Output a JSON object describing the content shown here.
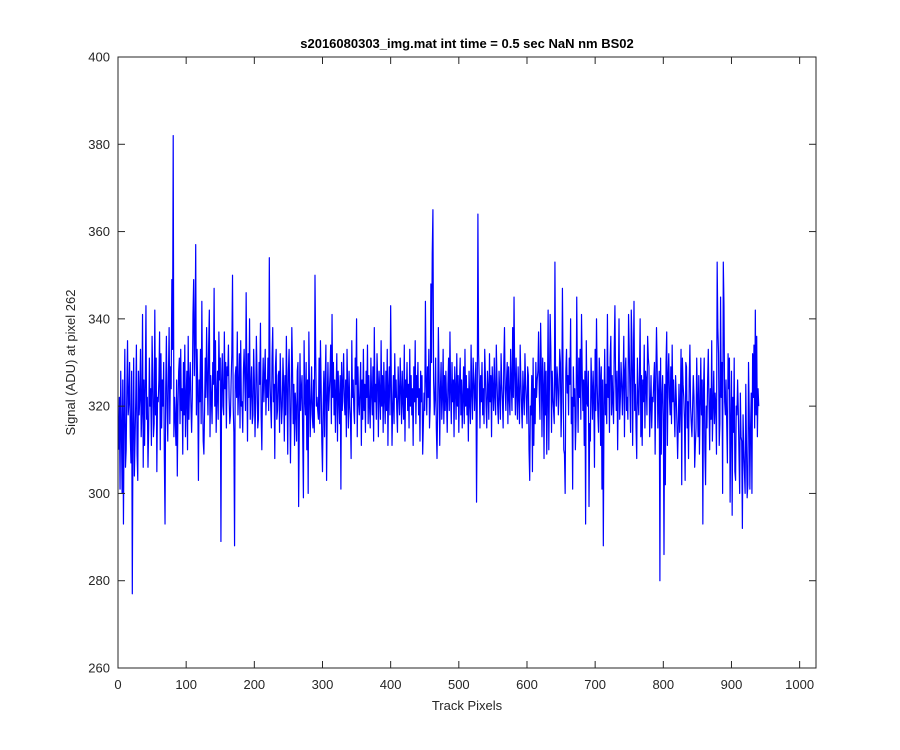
{
  "chart_data": {
    "type": "line",
    "title": "s2016080303_img.mat int time = 0.5 sec  NaN nm BS02",
    "xlabel": "Track Pixels",
    "ylabel": "Signal (ADU) at pixel 262",
    "xlim": [
      0,
      1024
    ],
    "ylim": [
      260,
      400
    ],
    "xticks": [
      0,
      100,
      200,
      300,
      400,
      500,
      600,
      700,
      800,
      900,
      1000
    ],
    "yticks": [
      260,
      280,
      300,
      320,
      340,
      360,
      380,
      400
    ],
    "grid": false,
    "colors": {
      "line": "#0000ff",
      "axes": "#262626"
    },
    "series": [
      {
        "x_start": 1,
        "x_step": 1,
        "values": [
          310,
          322,
          301,
          328,
          315,
          300,
          326,
          293,
          318,
          333,
          306,
          310,
          324,
          335,
          318,
          321,
          330,
          313,
          307,
          328,
          277,
          316,
          331,
          304,
          312,
          321,
          334,
          309,
          303,
          328,
          318,
          322,
          333,
          313,
          319,
          341,
          306,
          326,
          311,
          325,
          343,
          317,
          322,
          306,
          315,
          331,
          320,
          324,
          311,
          336,
          327,
          313,
          316,
          342,
          318,
          331,
          305,
          322,
          321,
          326,
          337,
          310,
          332,
          315,
          326,
          320,
          330,
          308,
          293,
          324,
          336,
          320,
          312,
          327,
          338,
          316,
          329,
          324,
          349,
          333,
          382,
          313,
          322,
          317,
          311,
          326,
          304,
          320,
          328,
          331,
          316,
          333,
          319,
          324,
          309,
          330,
          318,
          334,
          313,
          322,
          328,
          310,
          336,
          317,
          325,
          330,
          320,
          314,
          322,
          341,
          349,
          327,
          336,
          357,
          318,
          333,
          324,
          303,
          326,
          321,
          333,
          316,
          344,
          325,
          312,
          309,
          319,
          331,
          322,
          338,
          326,
          318,
          334,
          342,
          313,
          327,
          322,
          316,
          330,
          325,
          347,
          320,
          335,
          314,
          322,
          328,
          317,
          337,
          326,
          331,
          289,
          326,
          332,
          320,
          318,
          337,
          324,
          330,
          315,
          329,
          327,
          334,
          322,
          316,
          318,
          326,
          332,
          350,
          320,
          314,
          288,
          327,
          329,
          322,
          337,
          318,
          324,
          332,
          315,
          335,
          320,
          321,
          314,
          328,
          333,
          326,
          319,
          346,
          327,
          312,
          332,
          322,
          340,
          317,
          324,
          329,
          316,
          318,
          333,
          326,
          313,
          321,
          336,
          327,
          315,
          317,
          330,
          325,
          339,
          318,
          310,
          324,
          331,
          321,
          327,
          333,
          318,
          326,
          322,
          331,
          319,
          354,
          326,
          320,
          315,
          331,
          338,
          321,
          325,
          308,
          329,
          333,
          317,
          319,
          327,
          328,
          314,
          332,
          323,
          316,
          320,
          331,
          325,
          312,
          327,
          318,
          336,
          324,
          309,
          328,
          333,
          322,
          307,
          320,
          338,
          329,
          316,
          325,
          311,
          323,
          319,
          312,
          328,
          330,
          297,
          316,
          332,
          319,
          324,
          327,
          313,
          299,
          335,
          322,
          318,
          330,
          310,
          326,
          300,
          337,
          324,
          313,
          321,
          329,
          318,
          315,
          326,
          314,
          350,
          332,
          320,
          322,
          319,
          317,
          331,
          316,
          335,
          325,
          312,
          305,
          320,
          328,
          313,
          326,
          334,
          303,
          321,
          330,
          319,
          323,
          327,
          334,
          316,
          341,
          322,
          330,
          318,
          326,
          314,
          324,
          332,
          312,
          328,
          322,
          316,
          327,
          301,
          330,
          319,
          325,
          332,
          321,
          318,
          326,
          313,
          333,
          324,
          315,
          328,
          320,
          317,
          308,
          335,
          322,
          326,
          319,
          316,
          331,
          325,
          340,
          313,
          329,
          321,
          318,
          324,
          330,
          311,
          326,
          317,
          333,
          319,
          325,
          314,
          328,
          322,
          334,
          316,
          327,
          320,
          315,
          331,
          323,
          318,
          329,
          312,
          338,
          321,
          325,
          317,
          332,
          326,
          313,
          328,
          323,
          317,
          335,
          320,
          327,
          314,
          330,
          322,
          316,
          328,
          319,
          333,
          311,
          324,
          329,
          318,
          343,
          325,
          311,
          320,
          327,
          316,
          332,
          322,
          326,
          319,
          314,
          329,
          323,
          318,
          331,
          324,
          316,
          328,
          321,
          317,
          334,
          312,
          326,
          322,
          330,
          319,
          325,
          315,
          333,
          320,
          327,
          318,
          324,
          311,
          329,
          321,
          335,
          316,
          327,
          322,
          330,
          318,
          324,
          312,
          328,
          321,
          327,
          309,
          316,
          323,
          319,
          344,
          326,
          318,
          329,
          322,
          333,
          315,
          320,
          348,
          330,
          355,
          365,
          326,
          318,
          322,
          331,
          315,
          308,
          320,
          338,
          327,
          311,
          324,
          330,
          317,
          322,
          333,
          316,
          327,
          319,
          328,
          321,
          314,
          325,
          331,
          319,
          337,
          323,
          316,
          330,
          321,
          326,
          313,
          329,
          324,
          317,
          332,
          320,
          327,
          314,
          325,
          331,
          318,
          326,
          315,
          322,
          329,
          316,
          333,
          320,
          327,
          318,
          324,
          312,
          328,
          321,
          316,
          334,
          323,
          317,
          331,
          326,
          319,
          325,
          330,
          298,
          320,
          364,
          332,
          326,
          315,
          327,
          321,
          330,
          318,
          324,
          316,
          333,
          327,
          320,
          315,
          328,
          324,
          317,
          332,
          321,
          327,
          313,
          329,
          324,
          319,
          331,
          322,
          318,
          334,
          326,
          320,
          316,
          328,
          323,
          317,
          332,
          325,
          321,
          315,
          330,
          338,
          324,
          319,
          326,
          330,
          316,
          329,
          322,
          318,
          333,
          325,
          319,
          338,
          322,
          345,
          327,
          318,
          331,
          323,
          317,
          329,
          322,
          316,
          334,
          326,
          320,
          315,
          328,
          323,
          318,
          332,
          325,
          321,
          316,
          329,
          327,
          310,
          303,
          320,
          318,
          327,
          305,
          331,
          311,
          324,
          316,
          330,
          322,
          326,
          328,
          337,
          323,
          317,
          339,
          329,
          313,
          331,
          325,
          308,
          330,
          318,
          328,
          309,
          321,
          342,
          310,
          326,
          341,
          333,
          314,
          328,
          322,
          319,
          316,
          353,
          325,
          320,
          329,
          326,
          318,
          323,
          333,
          330,
          313,
          321,
          347,
          327,
          310,
          309,
          300,
          328,
          333,
          323,
          327,
          318,
          331,
          325,
          340,
          316,
          322,
          301,
          329,
          320,
          324,
          310,
          317,
          345,
          326,
          314,
          331,
          322,
          333,
          317,
          341,
          328,
          319,
          326,
          311,
          328,
          293,
          335,
          321,
          320,
          328,
          297,
          316,
          312,
          331,
          324,
          317,
          328,
          322,
          306,
          333,
          319,
          340,
          325,
          318,
          314,
          331,
          327,
          311,
          329,
          301,
          326,
          288,
          320,
          333,
          318,
          325,
          316,
          341,
          322,
          329,
          314,
          331,
          336,
          318,
          327,
          321,
          316,
          333,
          343,
          326,
          319,
          328,
          310,
          324,
          340,
          317,
          322,
          330,
          325,
          318,
          326,
          336,
          313,
          328,
          331,
          319,
          322,
          317,
          341,
          333,
          323,
          314,
          342,
          335,
          311,
          328,
          344,
          319,
          325,
          315,
          308,
          331,
          322,
          318,
          327,
          340,
          313,
          327,
          311,
          326,
          321,
          334,
          315,
          328,
          326,
          318,
          336,
          331,
          329,
          313,
          320,
          327,
          315,
          322,
          321,
          326,
          330,
          309,
          326,
          338,
          329,
          315,
          323,
          328,
          280,
          331,
          309,
          322,
          327,
          318,
          286,
          325,
          302,
          330,
          337,
          311,
          327,
          332,
          322,
          318,
          329,
          316,
          334,
          321,
          326,
          319,
          313,
          327,
          322,
          316,
          308,
          316,
          325,
          314,
          320,
          333,
          302,
          331,
          325,
          322,
          317,
          303,
          330,
          329,
          315,
          321,
          308,
          326,
          334,
          320,
          316,
          313,
          320,
          327,
          322,
          306,
          311,
          315,
          331,
          322,
          313,
          327,
          309,
          320,
          331,
          318,
          326,
          293,
          324,
          331,
          310,
          302,
          320,
          315,
          326,
          333,
          321,
          310,
          324,
          317,
          335,
          312,
          320,
          328,
          316,
          323,
          320,
          309,
          353,
          338,
          332,
          311,
          316,
          345,
          322,
          330,
          300,
          353,
          343,
          321,
          318,
          326,
          316,
          307,
          332,
          324,
          331,
          298,
          316,
          328,
          295,
          322,
          314,
          331,
          305,
          303,
          320,
          318,
          326,
          319,
          309,
          300,
          323,
          313,
          312,
          292,
          318,
          310,
          305,
          300,
          325,
          311,
          299,
          302,
          330,
          319,
          301,
          315,
          323,
          300,
          332,
          322,
          334,
          315,
          342,
          318,
          336,
          313,
          324,
          320
        ]
      }
    ]
  }
}
